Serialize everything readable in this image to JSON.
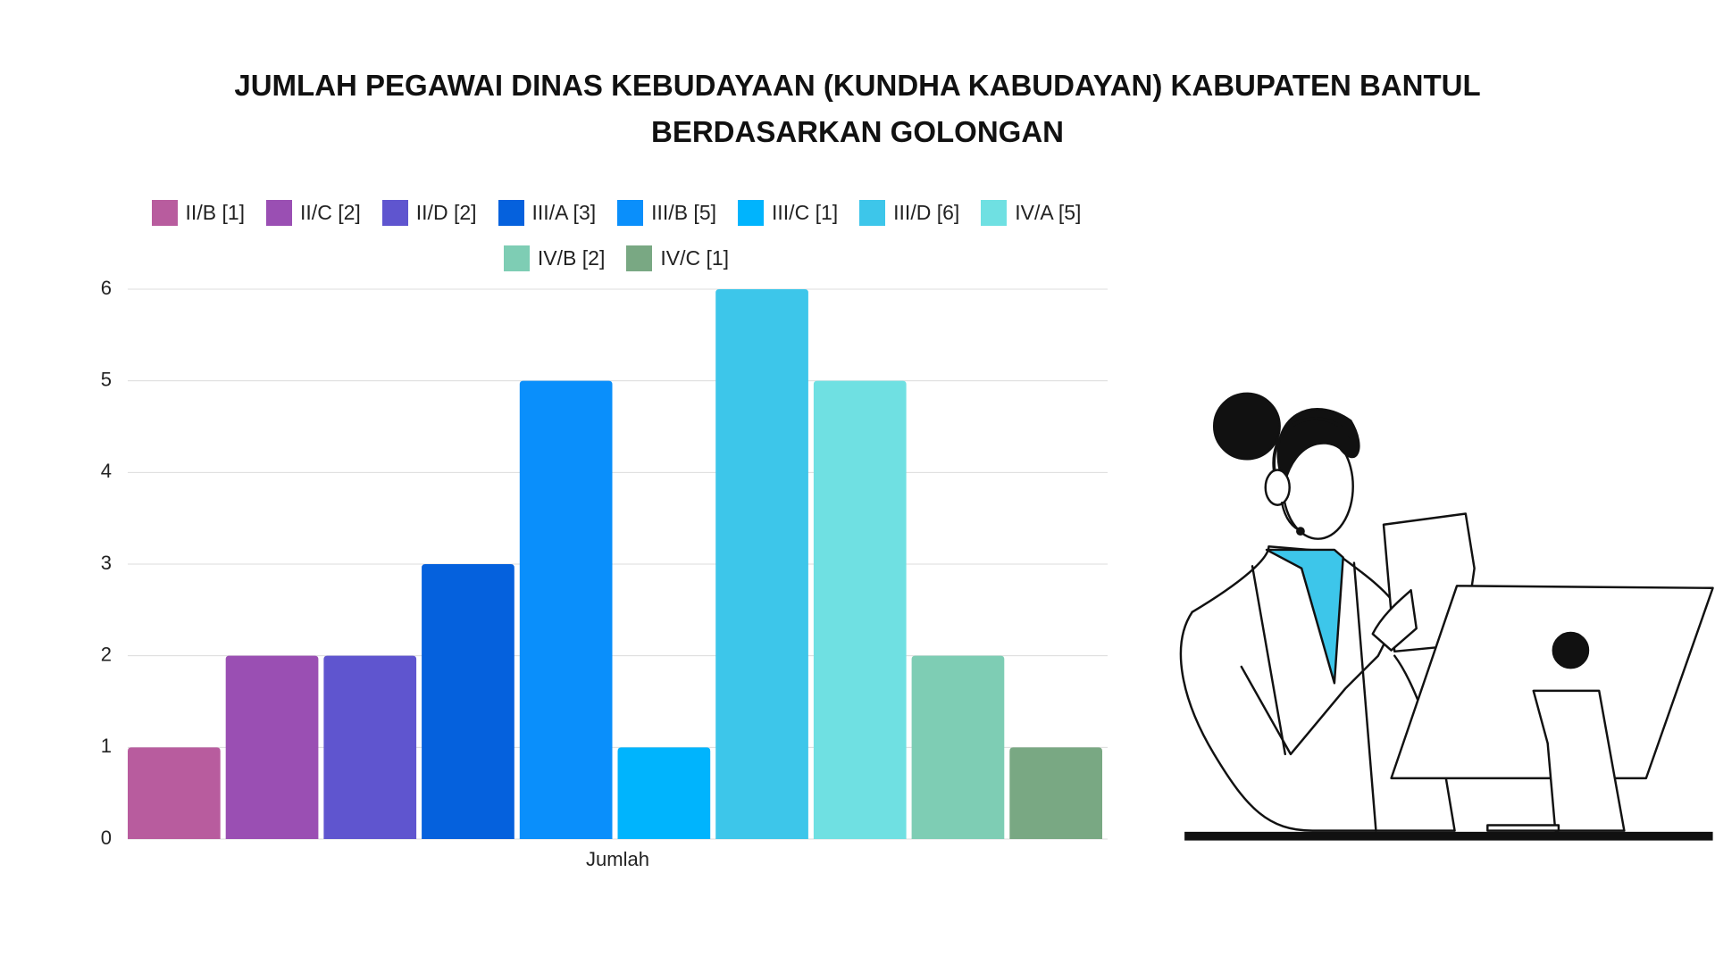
{
  "chart_data": {
    "type": "bar",
    "title": "JUMLAH PEGAWAI DINAS KEBUDAYAAN (KUNDHA KABUDAYAN) KABUPATEN BANTUL BERDASARKAN GOLONGAN",
    "categories": [
      "Jumlah"
    ],
    "series": [
      {
        "name": "II/B [1]",
        "color": "#b85c9e",
        "values": [
          1
        ]
      },
      {
        "name": "II/C [2]",
        "color": "#9a4fb3",
        "values": [
          2
        ]
      },
      {
        "name": "II/D [2]",
        "color": "#5f55cf",
        "values": [
          2
        ]
      },
      {
        "name": "III/A [3]",
        "color": "#0561dd",
        "values": [
          3
        ]
      },
      {
        "name": "III/B [5]",
        "color": "#0a8ffb",
        "values": [
          5
        ]
      },
      {
        "name": "III/C [1]",
        "color": "#00b4fd",
        "values": [
          1
        ]
      },
      {
        "name": "III/D [6]",
        "color": "#3dc6ea",
        "values": [
          6
        ]
      },
      {
        "name": "IV/A [5]",
        "color": "#6fe0e2",
        "values": [
          5
        ]
      },
      {
        "name": "IV/B [2]",
        "color": "#7ecdb4",
        "values": [
          2
        ]
      },
      {
        "name": "IV/C [1]",
        "color": "#79a883",
        "values": [
          1
        ]
      }
    ],
    "ylim": [
      0,
      6
    ],
    "yticks": [
      0,
      1,
      2,
      3,
      4,
      5,
      6
    ],
    "grid": true
  }
}
